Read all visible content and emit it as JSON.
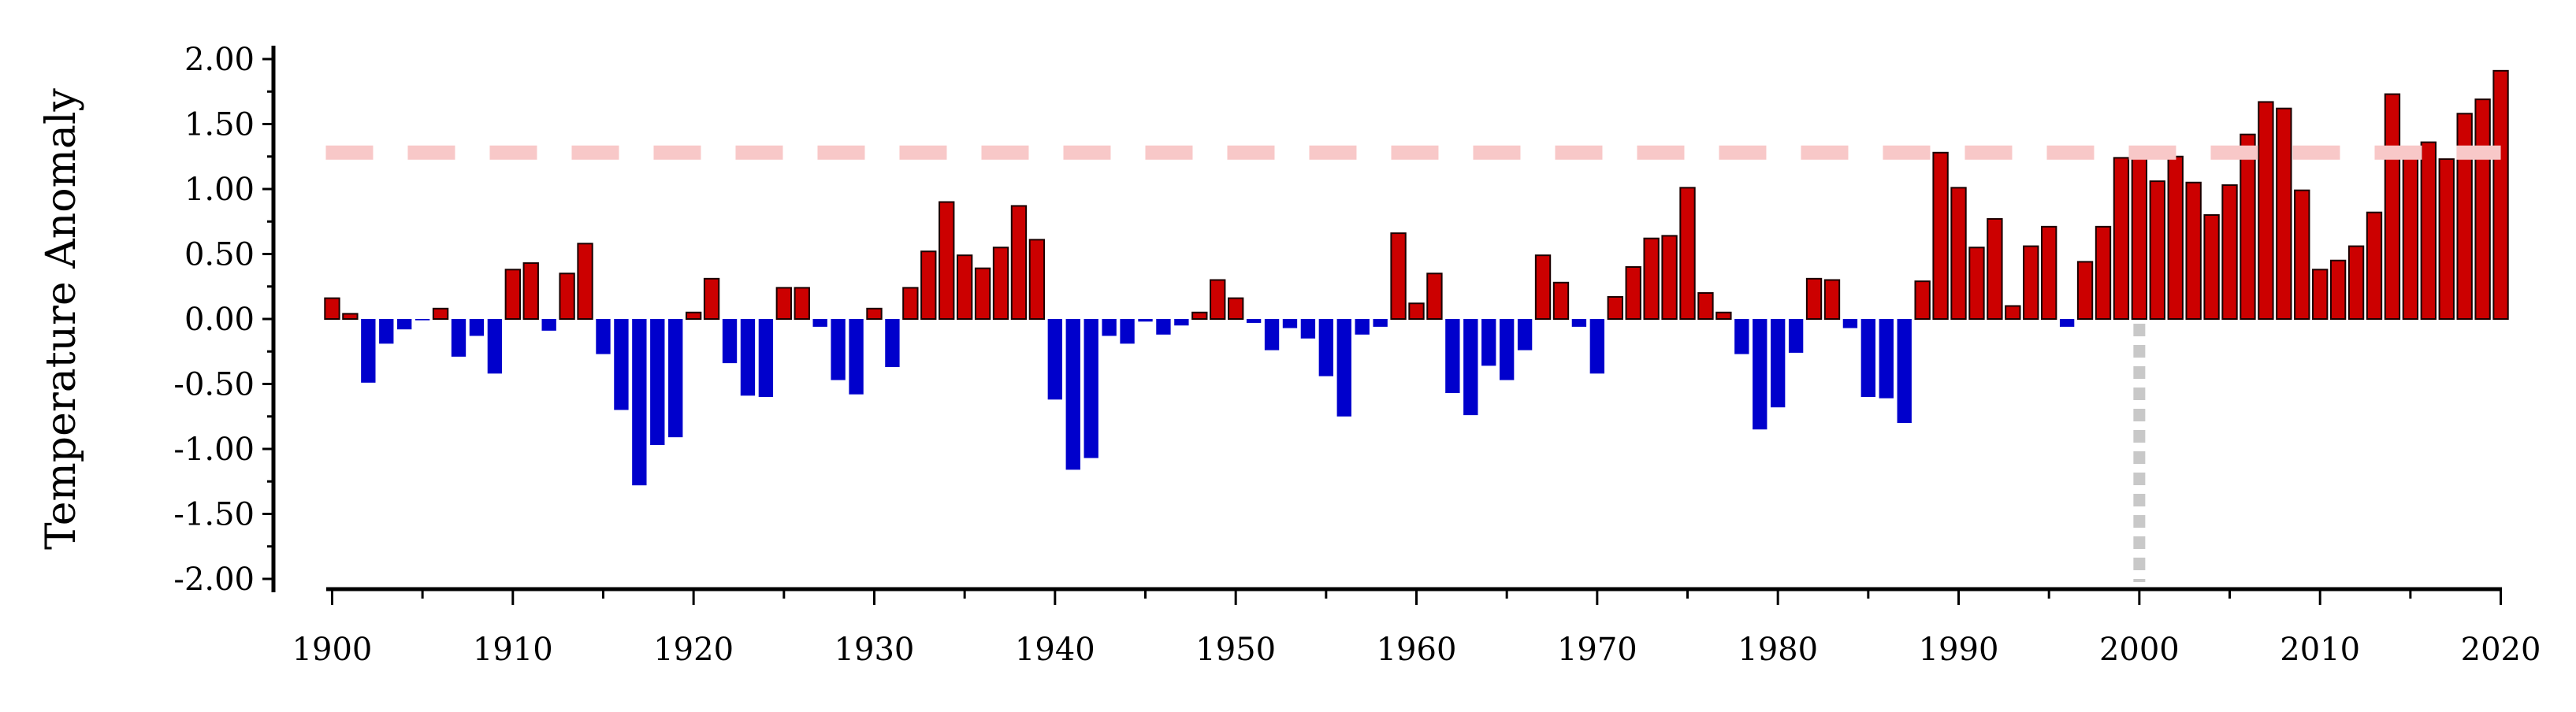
{
  "chart_data": {
    "type": "bar",
    "title": "",
    "xlabel": "",
    "ylabel": "Temperature Anomaly",
    "ylim": [
      -2.0,
      2.0
    ],
    "xlim": [
      1899.5,
      2020.5
    ],
    "yticks": [
      -2.0,
      -1.5,
      -1.0,
      -0.5,
      0.0,
      0.5,
      1.0,
      1.5,
      2.0
    ],
    "ytick_labels": [
      "-2.00",
      "-1.50",
      "-1.00",
      "-0.50",
      "0.00",
      "0.50",
      "1.00",
      "1.50",
      "2.00"
    ],
    "xticks": [
      1900,
      1910,
      1920,
      1930,
      1940,
      1950,
      1960,
      1970,
      1980,
      1990,
      2000,
      2010,
      2020
    ],
    "xtick_labels": [
      "1900",
      "1910",
      "1920",
      "1930",
      "1940",
      "1950",
      "1960",
      "1970",
      "1980",
      "1990",
      "2000",
      "2010",
      "2020"
    ],
    "grid": false,
    "colors": {
      "positive": "#cc0000",
      "negative": "#0000cc",
      "threshold_line": "#f8c8c8",
      "marker_line": "#c8c8c8"
    },
    "threshold_y": 1.28,
    "marker_x": 2000,
    "years": [
      1900,
      1901,
      1902,
      1903,
      1904,
      1905,
      1906,
      1907,
      1908,
      1909,
      1910,
      1911,
      1912,
      1913,
      1914,
      1915,
      1916,
      1917,
      1918,
      1919,
      1920,
      1921,
      1922,
      1923,
      1924,
      1925,
      1926,
      1927,
      1928,
      1929,
      1930,
      1931,
      1932,
      1933,
      1934,
      1935,
      1936,
      1937,
      1938,
      1939,
      1940,
      1941,
      1942,
      1943,
      1944,
      1945,
      1946,
      1947,
      1948,
      1949,
      1950,
      1951,
      1952,
      1953,
      1954,
      1955,
      1956,
      1957,
      1958,
      1959,
      1960,
      1961,
      1962,
      1963,
      1964,
      1965,
      1966,
      1967,
      1968,
      1969,
      1970,
      1971,
      1972,
      1973,
      1974,
      1975,
      1976,
      1977,
      1978,
      1979,
      1980,
      1981,
      1982,
      1983,
      1984,
      1985,
      1986,
      1987,
      1988,
      1989,
      1990,
      1991,
      1992,
      1993,
      1994,
      1995,
      1996,
      1997,
      1998,
      1999,
      2000,
      2001,
      2002,
      2003,
      2004,
      2005,
      2006,
      2007,
      2008,
      2009,
      2010,
      2011,
      2012,
      2013,
      2014,
      2015,
      2016,
      2017,
      2018,
      2019,
      2020
    ],
    "values": [
      0.16,
      0.04,
      -0.49,
      -0.19,
      -0.08,
      -0.01,
      0.08,
      -0.29,
      -0.13,
      -0.42,
      0.38,
      0.43,
      -0.09,
      0.35,
      0.58,
      -0.27,
      -0.7,
      -1.28,
      -0.97,
      -0.91,
      0.05,
      0.31,
      -0.34,
      -0.59,
      -0.6,
      0.24,
      0.24,
      -0.06,
      -0.47,
      -0.58,
      0.08,
      -0.37,
      0.24,
      0.52,
      0.9,
      0.49,
      0.39,
      0.55,
      0.87,
      0.61,
      -0.62,
      -1.16,
      -1.07,
      -0.13,
      -0.19,
      -0.02,
      -0.12,
      -0.05,
      0.05,
      0.3,
      0.16,
      -0.03,
      -0.24,
      -0.07,
      -0.15,
      -0.44,
      -0.75,
      -0.12,
      -0.06,
      0.66,
      0.12,
      0.35,
      -0.57,
      -0.74,
      -0.36,
      -0.47,
      -0.24,
      0.49,
      0.28,
      -0.06,
      -0.42,
      0.17,
      0.4,
      0.62,
      0.64,
      1.01,
      0.2,
      0.05,
      -0.27,
      -0.85,
      -0.68,
      -0.26,
      0.31,
      0.3,
      -0.07,
      -0.6,
      -0.61,
      -0.8,
      0.29,
      1.28,
      1.01,
      0.55,
      0.77,
      0.1,
      0.56,
      0.71,
      -0.06,
      0.44,
      0.71,
      1.24,
      1.29,
      1.06,
      1.25,
      1.05,
      0.8,
      1.03,
      1.42,
      1.67,
      1.62,
      0.99,
      0.38,
      0.45,
      0.56,
      0.82,
      1.73,
      1.25,
      1.36,
      1.23,
      1.58,
      1.69,
      1.91
    ]
  }
}
